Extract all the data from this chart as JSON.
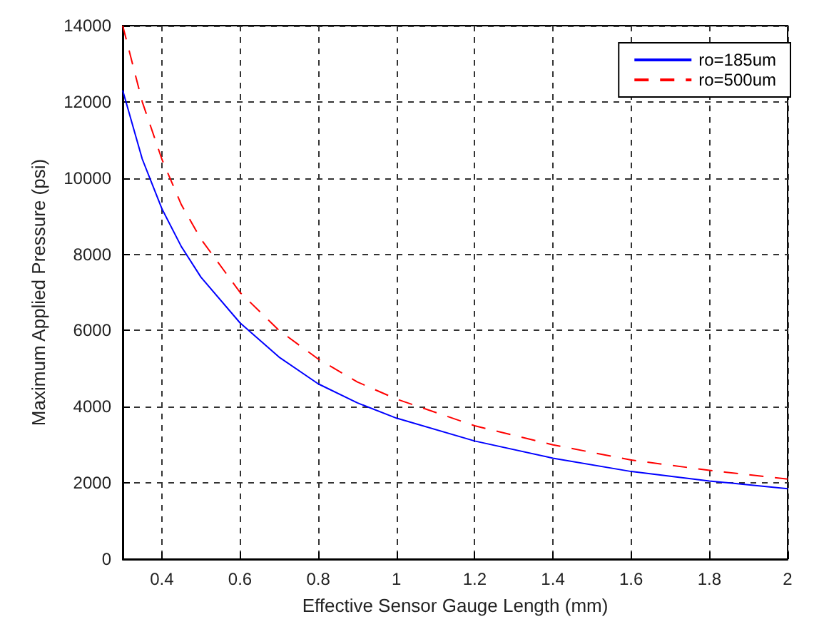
{
  "chart_data": {
    "type": "line",
    "xlabel": "Effective Sensor Gauge Length (mm)",
    "ylabel": "Maximum Applied Pressure (psi)",
    "x": [
      0.3,
      0.35,
      0.4,
      0.45,
      0.5,
      0.6,
      0.7,
      0.8,
      0.9,
      1.0,
      1.2,
      1.4,
      1.6,
      1.8,
      2.0
    ],
    "series": [
      {
        "name": "ro=185um",
        "color": "#0000ff",
        "line_style": "solid",
        "values": [
          12300,
          10500,
          9200,
          8200,
          7400,
          6200,
          5300,
          4600,
          4100,
          3700,
          3100,
          2650,
          2300,
          2050,
          1850
        ]
      },
      {
        "name": "ro=500um",
        "color": "#ff0000",
        "line_style": "dashed",
        "values": [
          14000,
          12000,
          10500,
          9300,
          8400,
          7000,
          6000,
          5250,
          4650,
          4200,
          3500,
          3000,
          2600,
          2330,
          2100
        ]
      }
    ],
    "xlim": [
      0.3,
      2
    ],
    "xticks": [
      0.4,
      0.6,
      0.8,
      1,
      1.2,
      1.4,
      1.6,
      1.8,
      2
    ],
    "ylim": [
      0,
      14000
    ],
    "yticks": [
      0,
      2000,
      4000,
      6000,
      8000,
      10000,
      12000,
      14000
    ],
    "grid": true,
    "legend": "top right",
    "marker": "none"
  }
}
